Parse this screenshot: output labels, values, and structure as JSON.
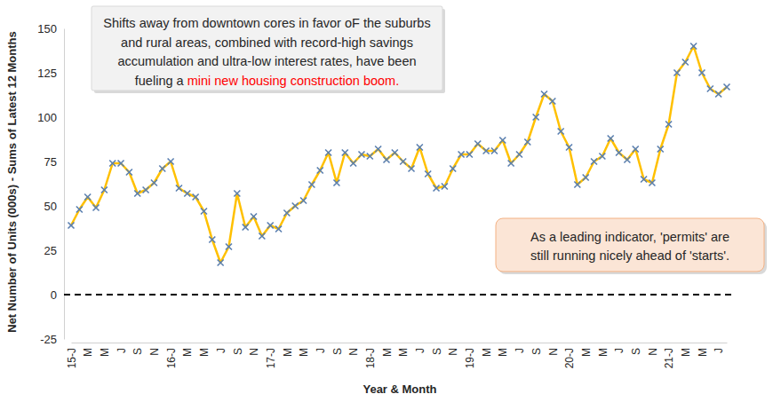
{
  "chart_data": {
    "type": "line",
    "x_label": "Year & Month",
    "y_label": "Net Number of Units (000s) - Sums of Latest 12 Months",
    "categories": [
      "15-J",
      null,
      "M",
      null,
      "M",
      null,
      "J",
      null,
      "S",
      null,
      "N",
      null,
      "16-J",
      null,
      "M",
      null,
      "M",
      null,
      "J",
      null,
      "S",
      null,
      "N",
      null,
      "17-J",
      null,
      "M",
      null,
      "M",
      null,
      "J",
      null,
      "S",
      null,
      "N",
      null,
      "18-J",
      null,
      "M",
      null,
      "M",
      null,
      "J",
      null,
      "S",
      null,
      "N",
      null,
      "19-J",
      null,
      "M",
      null,
      "M",
      null,
      "J",
      null,
      "S",
      null,
      "N",
      null,
      "20-J",
      null,
      "M",
      null,
      "M",
      null,
      "J",
      null,
      "S",
      null,
      "N",
      null,
      "21-J",
      null,
      "M",
      null,
      "M",
      null,
      "J",
      null
    ],
    "values": [
      39,
      48,
      55,
      49,
      59,
      74,
      74,
      69,
      57,
      59,
      63,
      71,
      75,
      60,
      57,
      55,
      47,
      31,
      18,
      27,
      57,
      38,
      44,
      33,
      39,
      37,
      46,
      50,
      53,
      62,
      70,
      80,
      63,
      80,
      74,
      79,
      78,
      82,
      76,
      80,
      75,
      71,
      83,
      68,
      60,
      61,
      71,
      79,
      79,
      85,
      81,
      81,
      87,
      74,
      79,
      86,
      100,
      113,
      109,
      92,
      83,
      62,
      66,
      75,
      78,
      88,
      80,
      76,
      82,
      65,
      63,
      82,
      96,
      125,
      131,
      140,
      125,
      116,
      113,
      117
    ],
    "color": "#FFC000",
    "marker": "x",
    "ylim": [
      -25,
      150
    ],
    "yticks": [
      -25,
      0,
      25,
      50,
      75,
      100,
      125,
      150
    ],
    "grid": false,
    "hlines": [
      {
        "value": 0,
        "color": "#000000",
        "line_style": "dashed"
      }
    ],
    "annotations": [
      {
        "lines": [
          [
            {
              "text": "Shifts away from downtown cores in favor oF the suburbs"
            }
          ],
          [
            {
              "text": "and rural areas, combined with record-high savings"
            }
          ],
          [
            {
              "text": "accumulation and ultra-low interest rates, have been"
            }
          ],
          [
            {
              "text": "fueling a "
            },
            {
              "text": "mini new housing construction boom.",
              "color": "#FF0000"
            }
          ]
        ]
      },
      {
        "lines": [
          [
            {
              "text": "As a leading indicator, 'permits' are"
            }
          ],
          [
            {
              "text": "still running nicely ahead of 'starts'."
            }
          ]
        ]
      }
    ]
  }
}
